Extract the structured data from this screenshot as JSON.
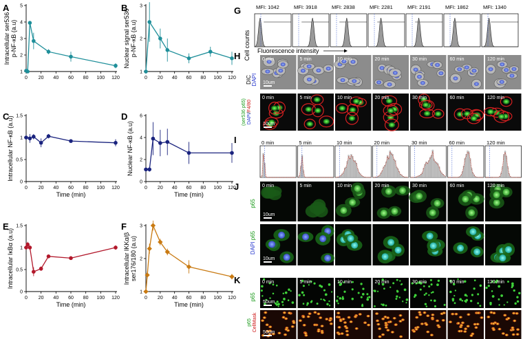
{
  "panel_letters": [
    "A",
    "B",
    "C",
    "D",
    "E",
    "F",
    "G",
    "H",
    "I",
    "J",
    "K"
  ],
  "chart_data": [
    {
      "type": "line",
      "panel": "A",
      "color": "#1f8f9a",
      "x": [
        0,
        2,
        5,
        10,
        30,
        60,
        120
      ],
      "y": [
        1.05,
        1.0,
        3.95,
        2.85,
        2.2,
        1.9,
        1.35
      ],
      "err": [
        0.05,
        0.05,
        0.1,
        0.5,
        0.15,
        0.3,
        0.15
      ],
      "ylabel": "Intracellular ser536 p-NF-κB (a.u)",
      "xlabel": "",
      "xlim": [
        0,
        120
      ],
      "ylim": [
        1,
        5
      ],
      "yticks": [
        1,
        2,
        3,
        4,
        5
      ],
      "xticks": [
        0,
        20,
        40,
        60,
        80,
        100,
        120
      ]
    },
    {
      "type": "line",
      "panel": "B",
      "color": "#1f8f9a",
      "x": [
        0,
        5,
        20,
        30,
        60,
        90,
        120
      ],
      "y": [
        1.0,
        2.5,
        2.0,
        1.65,
        1.4,
        1.6,
        1.4
      ],
      "err": [
        0.05,
        0.6,
        0.3,
        0.35,
        0.15,
        0.15,
        0.2
      ],
      "ylabel": "Nuclear signal ser536 p-NF-κB (a.u)",
      "xlabel": "",
      "xlim": [
        0,
        120
      ],
      "ylim": [
        1,
        3
      ],
      "yticks": [
        1,
        2,
        3
      ],
      "xticks": [
        0,
        20,
        40,
        60,
        80,
        100,
        120
      ]
    },
    {
      "type": "line",
      "panel": "C",
      "color": "#1a237e",
      "x": [
        0,
        5,
        10,
        20,
        30,
        60,
        120
      ],
      "y": [
        1.0,
        0.98,
        1.02,
        0.88,
        1.03,
        0.92,
        0.88
      ],
      "err": [
        0.05,
        0.1,
        0.06,
        0.1,
        0.05,
        0.03,
        0.08
      ],
      "ylabel": "Intracellular NF-κB (a.u)",
      "xlabel": "Time (min)",
      "xlim": [
        0,
        120
      ],
      "ylim": [
        0,
        1.5
      ],
      "yticks": [
        0,
        0.5,
        1,
        1.5
      ],
      "xticks": [
        0,
        20,
        40,
        60,
        80,
        100,
        120
      ]
    },
    {
      "type": "line",
      "panel": "D",
      "color": "#1a237e",
      "x": [
        0,
        5,
        10,
        20,
        30,
        60,
        120
      ],
      "y": [
        1.1,
        1.1,
        3.9,
        3.5,
        3.6,
        2.6,
        2.6
      ],
      "err": [
        0.2,
        0.2,
        1.5,
        1.2,
        1.2,
        1.0,
        0.9
      ],
      "ylabel": "Nuclear NF-κB (a.u)",
      "xlabel": "Time (min)",
      "xlim": [
        0,
        120
      ],
      "ylim": [
        0,
        6
      ],
      "yticks": [
        0,
        2,
        4,
        6
      ],
      "xticks": [
        0,
        20,
        40,
        60,
        80,
        100,
        120
      ]
    },
    {
      "type": "line",
      "panel": "E",
      "color": "#b2182b",
      "x": [
        0,
        2,
        5,
        10,
        20,
        30,
        60,
        120
      ],
      "y": [
        1.0,
        1.07,
        1.0,
        0.45,
        0.52,
        0.8,
        0.76,
        1.0
      ],
      "err": [
        0.05,
        0.06,
        0.05,
        0.1,
        0.05,
        0.04,
        0.03,
        0.05
      ],
      "ylabel": "Intracellular IκBα (a.u)",
      "xlabel": "Time (min)",
      "xlim": [
        0,
        120
      ],
      "ylim": [
        0,
        1.5
      ],
      "yticks": [
        0,
        0.5,
        1,
        1.5
      ],
      "xticks": [
        0,
        20,
        40,
        60,
        80,
        100,
        120
      ]
    },
    {
      "type": "line",
      "panel": "F",
      "color": "#c97a12",
      "x": [
        0,
        2,
        5,
        10,
        20,
        30,
        60,
        120
      ],
      "y": [
        1.0,
        1.5,
        2.3,
        3.0,
        2.5,
        2.2,
        1.75,
        1.45
      ],
      "err": [
        0.05,
        0.1,
        0.15,
        0.15,
        0.1,
        0.1,
        0.2,
        0.08
      ],
      "ylabel": "Intracellular IKKα/β ser176/180 (a.u)",
      "xlabel": "Time (min)",
      "xlim": [
        0,
        120
      ],
      "ylim": [
        1,
        3
      ],
      "yticks": [
        1,
        2,
        3
      ],
      "xticks": [
        0,
        20,
        40,
        60,
        80,
        100,
        120
      ]
    }
  ],
  "panelG": {
    "mfi": [
      "MFI: 1042",
      "MFI: 3918",
      "MFI: 2838",
      "MFI: 2281",
      "MFI: 2191",
      "MFI: 1862",
      "MFI: 1340"
    ],
    "ylabel": "Cell counts",
    "xlabel": "Fluorescence intensity"
  },
  "timepoints": [
    "0 min",
    "5 min",
    "10 min",
    "20 min",
    "30 min",
    "60 min",
    "120 min"
  ],
  "panelH": {
    "row1_label_a": "DIC",
    "row1_label_b": "DAPI",
    "row2_label_a": "(ser536 p65)",
    "row2_label_b": "DAPI",
    "row2_label_c": "F4/80",
    "scale1": "10um",
    "scale2": "10um"
  },
  "panelJ": {
    "row1_label": "p65",
    "row2_label_a": "DAPI",
    "row2_label_b": "p65",
    "scale1": "10um",
    "scale2": "10um"
  },
  "panelK": {
    "row1_label": "p65",
    "row2_label_a": "p65",
    "row2_label_b": "CellMask",
    "scale1": "50um",
    "scale2": "50um"
  },
  "colors": {
    "teal": "#1f8f9a",
    "navy": "#1a237e",
    "red": "#b2182b",
    "orange": "#c97a12"
  }
}
